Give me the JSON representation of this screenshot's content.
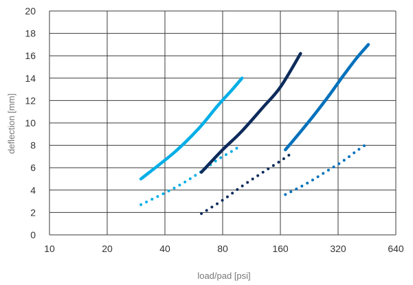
{
  "chart_data": {
    "type": "line",
    "title": "",
    "xlabel": "load/pad [psi]",
    "ylabel": "deflection [mm]",
    "x_scale": "log2",
    "xlim": [
      10,
      640
    ],
    "ylim": [
      0,
      20
    ],
    "x_ticks": [
      10,
      20,
      40,
      80,
      160,
      320,
      640
    ],
    "y_ticks": [
      0,
      2,
      4,
      6,
      8,
      10,
      12,
      14,
      16,
      18,
      20
    ],
    "grid": true,
    "series": [
      {
        "color": "#00aee6",
        "style": "solid",
        "x": [
          30,
          45,
          60,
          75,
          90,
          101
        ],
        "y": [
          5.0,
          7.4,
          9.5,
          11.5,
          13.0,
          14.0
        ]
      },
      {
        "color": "#00aee6",
        "style": "dotted",
        "x": [
          30,
          45,
          60,
          75,
          90,
          100
        ],
        "y": [
          2.7,
          4.2,
          5.5,
          6.7,
          7.5,
          8.0
        ]
      },
      {
        "color": "#0d2b5b",
        "style": "solid",
        "x": [
          62,
          80,
          100,
          130,
          160,
          204
        ],
        "y": [
          5.6,
          7.6,
          9.2,
          11.4,
          13.2,
          16.2
        ]
      },
      {
        "color": "#0d2b5b",
        "style": "dotted",
        "x": [
          62,
          80,
          100,
          130,
          160,
          180
        ],
        "y": [
          1.9,
          3.1,
          4.3,
          5.6,
          6.6,
          7.2
        ]
      },
      {
        "color": "#0071bb",
        "style": "solid",
        "x": [
          170,
          220,
          280,
          340,
          400,
          460
        ],
        "y": [
          7.6,
          9.9,
          12.2,
          14.2,
          15.8,
          17.0
        ]
      },
      {
        "color": "#0071bb",
        "style": "dotted",
        "x": [
          170,
          220,
          280,
          340,
          400,
          460
        ],
        "y": [
          3.6,
          4.6,
          5.7,
          6.6,
          7.5,
          8.2
        ]
      }
    ]
  }
}
